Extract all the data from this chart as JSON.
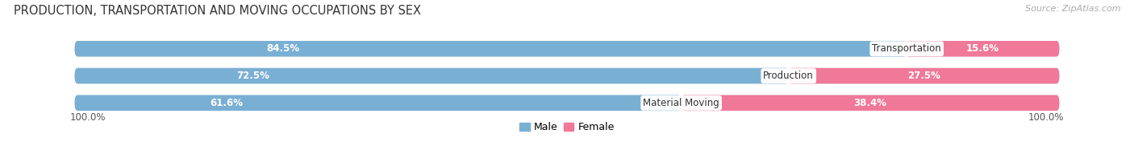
{
  "title": "PRODUCTION, TRANSPORTATION AND MOVING OCCUPATIONS BY SEX",
  "source": "Source: ZipAtlas.com",
  "categories": [
    "Transportation",
    "Production",
    "Material Moving"
  ],
  "male_pct": [
    84.5,
    72.5,
    61.6
  ],
  "female_pct": [
    15.6,
    27.5,
    38.4
  ],
  "male_color": "#7aafd4",
  "female_color": "#f07898",
  "bar_bg_color": "#e8e8ee",
  "male_label": "Male",
  "female_label": "Female",
  "axis_label": "100.0%",
  "title_fontsize": 10.5,
  "pct_fontsize": 8.5,
  "cat_fontsize": 8.5,
  "source_fontsize": 8,
  "legend_fontsize": 9,
  "bar_height": 0.58,
  "bar_rounding": 0.3,
  "xlim_left": -5,
  "xlim_right": 105,
  "n_bars": 3
}
